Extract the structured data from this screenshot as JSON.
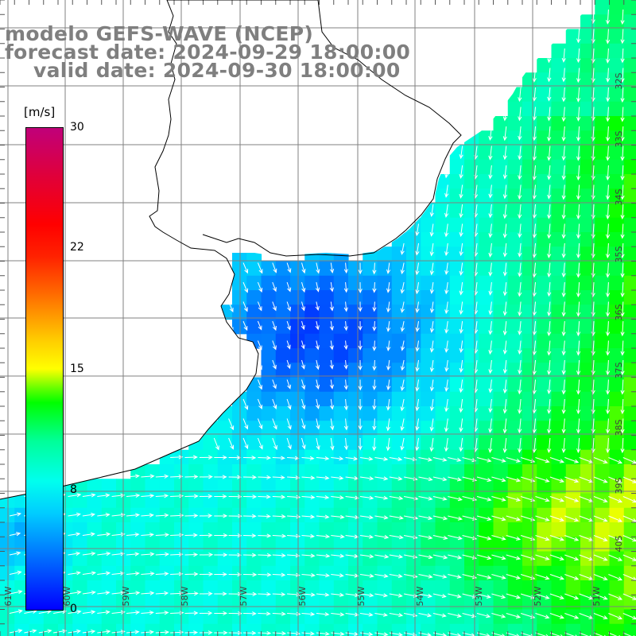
{
  "title": {
    "line1": "modelo GEFS-WAVE (NCEP)",
    "line2": "forecast date: 2024-09-29 18:00:00",
    "line3": "valid date: 2024-09-30 18:00:00"
  },
  "colorbar": {
    "unit": "[m/s]",
    "labels": [
      "30",
      "22",
      "15",
      "8",
      "0"
    ],
    "min": 0,
    "max": 30,
    "colors": [
      "#0000ff",
      "#00ccff",
      "#00ff00",
      "#ffff00",
      "#ff0000",
      "#c0007a"
    ]
  },
  "map": {
    "variable": "wind speed",
    "land_color": "#ffffff",
    "coast_color": "#000000",
    "grid_color": "#808080",
    "arrow_color": "#ffffff",
    "lat_labels": [
      "32S",
      "33S",
      "34S",
      "35S",
      "36S",
      "37S",
      "38S",
      "39S",
      "40S"
    ],
    "lon_labels": [
      "61W",
      "60W",
      "59W",
      "58W",
      "57W",
      "56W",
      "55W",
      "54W",
      "53W",
      "52W",
      "51W"
    ]
  }
}
